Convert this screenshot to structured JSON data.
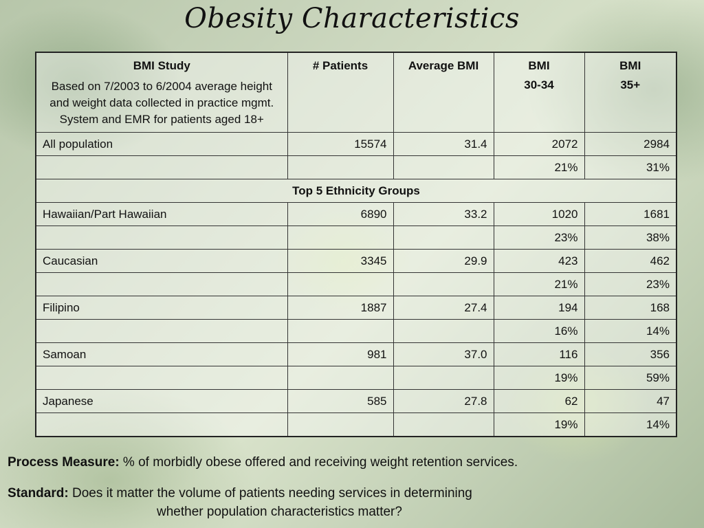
{
  "title": "Obesity Characteristics",
  "table": {
    "headers": {
      "study": "BMI Study",
      "study_desc": "Based on 7/2003 to 6/2004 average height and weight data collected in practice mgmt. System and EMR for patients aged 18+",
      "patients": "# Patients",
      "avg_bmi": "Average BMI",
      "bmi30_a": "BMI",
      "bmi30_b": "30-34",
      "bmi35_a": "BMI",
      "bmi35_b": "35+"
    },
    "all": {
      "label": "All population",
      "patients": "15574",
      "avg": "31.4",
      "b30": "2072",
      "b35": "2984",
      "p30": "21%",
      "p35": "31%"
    },
    "group_header": "Top 5 Ethnicity Groups",
    "groups": [
      {
        "label": "Hawaiian/Part Hawaiian",
        "patients": "6890",
        "avg": "33.2",
        "b30": "1020",
        "b35": "1681",
        "p30": "23%",
        "p35": "38%"
      },
      {
        "label": "Caucasian",
        "patients": "3345",
        "avg": "29.9",
        "b30": "423",
        "b35": "462",
        "p30": "21%",
        "p35": "23%"
      },
      {
        "label": "Filipino",
        "patients": "1887",
        "avg": "27.4",
        "b30": "194",
        "b35": "168",
        "p30": "16%",
        "p35": "14%"
      },
      {
        "label": "Samoan",
        "patients": "981",
        "avg": "37.0",
        "b30": "116",
        "b35": "356",
        "p30": "19%",
        "p35": "59%"
      },
      {
        "label": "Japanese",
        "patients": "585",
        "avg": "27.8",
        "b30": "62",
        "b35": "47",
        "p30": "19%",
        "p35": "14%"
      }
    ]
  },
  "footer": {
    "measure_label": "Process Measure:",
    "measure_text": " % of morbidly obese offered and receiving weight retention services.",
    "standard_label": "Standard:",
    "standard_text_1": " Does it matter the volume of patients needing services in determining",
    "standard_text_2": "whether population characteristics matter?"
  }
}
